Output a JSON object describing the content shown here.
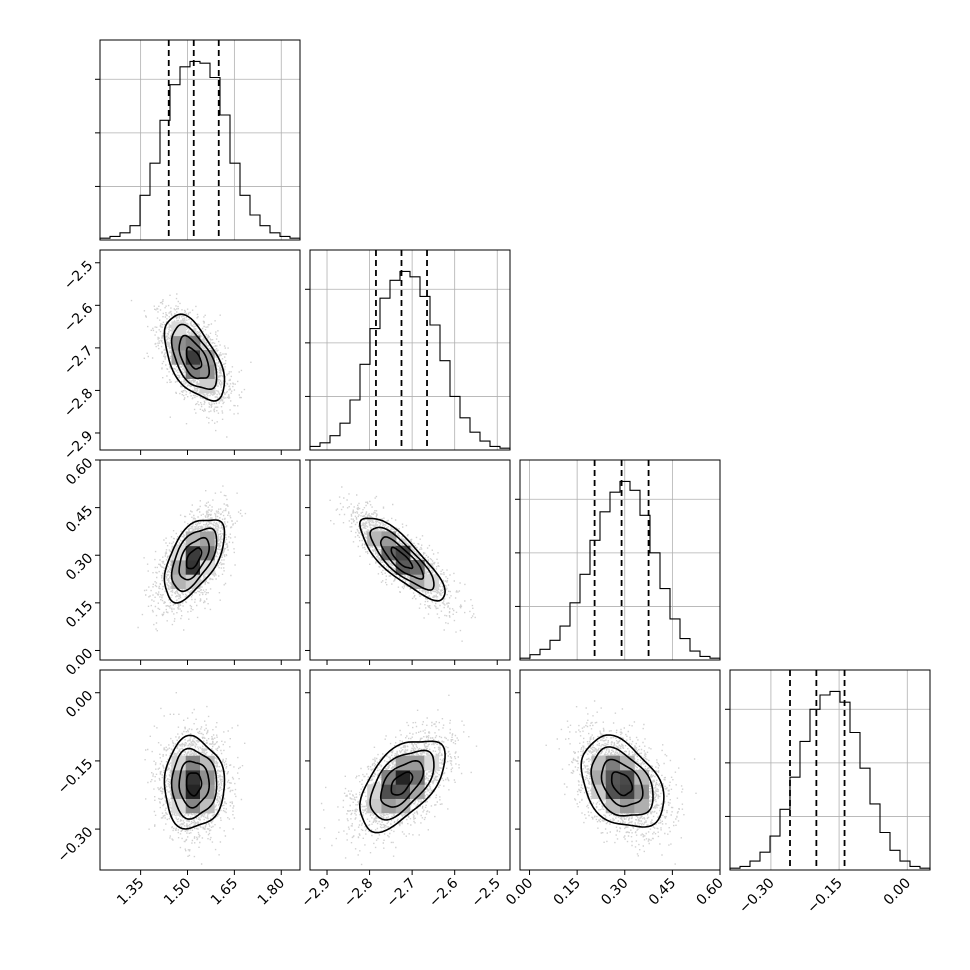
{
  "chart_data": {
    "type": "corner",
    "grid": true,
    "parameters": [
      {
        "range": [
          1.22,
          1.86
        ],
        "ticks": [
          1.35,
          1.5,
          1.65,
          1.8
        ],
        "tick_labels": [
          "1.35",
          "1.50",
          "1.65",
          "1.80"
        ],
        "quantiles": [
          1.44,
          1.52,
          1.6
        ],
        "histogram": [
          0.01,
          0.02,
          0.04,
          0.08,
          0.25,
          0.43,
          0.67,
          0.87,
          0.97,
          1.0,
          0.99,
          0.91,
          0.7,
          0.43,
          0.25,
          0.14,
          0.08,
          0.04,
          0.02,
          0.01
        ],
        "hist_yticks": [
          0.3,
          0.6,
          0.9
        ]
      },
      {
        "range": [
          -2.94,
          -2.47
        ],
        "ticks": [
          -2.9,
          -2.8,
          -2.7,
          -2.6,
          -2.5
        ],
        "tick_labels": [
          "−2.9",
          "−2.8",
          "−2.7",
          "−2.6",
          "−2.5"
        ],
        "quantiles": [
          -2.785,
          -2.725,
          -2.665
        ],
        "histogram": [
          0.02,
          0.04,
          0.08,
          0.15,
          0.28,
          0.48,
          0.68,
          0.85,
          0.95,
          1.0,
          0.97,
          0.86,
          0.7,
          0.5,
          0.3,
          0.18,
          0.1,
          0.05,
          0.02,
          0.01
        ],
        "hist_yticks": [
          0.3,
          0.6,
          0.9
        ]
      },
      {
        "range": [
          -0.03,
          0.6
        ],
        "ticks": [
          0.0,
          0.15,
          0.3,
          0.45,
          0.6
        ],
        "tick_labels": [
          "0.00",
          "0.15",
          "0.30",
          "0.45",
          "0.60"
        ],
        "quantiles": [
          0.205,
          0.29,
          0.375
        ],
        "histogram": [
          0.01,
          0.03,
          0.06,
          0.11,
          0.19,
          0.32,
          0.48,
          0.67,
          0.83,
          0.94,
          1.0,
          0.95,
          0.81,
          0.6,
          0.4,
          0.23,
          0.12,
          0.05,
          0.02,
          0.01
        ],
        "hist_yticks": [
          0.3,
          0.6,
          0.9
        ]
      },
      {
        "range": [
          -0.39,
          0.05
        ],
        "ticks": [
          -0.3,
          -0.15,
          0.0
        ],
        "tick_labels": [
          "−0.30",
          "−0.15",
          "0.00"
        ],
        "quantiles": [
          -0.258,
          -0.2,
          -0.138
        ],
        "histogram": [
          0.01,
          0.02,
          0.05,
          0.1,
          0.19,
          0.34,
          0.52,
          0.72,
          0.9,
          0.98,
          1.0,
          0.94,
          0.77,
          0.57,
          0.37,
          0.21,
          0.11,
          0.05,
          0.02,
          0.01
        ],
        "hist_yticks": [
          0.3,
          0.6,
          0.9
        ]
      }
    ],
    "pairs": [
      {
        "x": 0,
        "y": 1,
        "mean": [
          1.52,
          -2.725
        ],
        "sd": [
          0.048,
          0.05
        ],
        "corr": -0.55
      },
      {
        "x": 0,
        "y": 2,
        "mean": [
          1.52,
          0.29
        ],
        "sd": [
          0.048,
          0.065
        ],
        "corr": 0.55
      },
      {
        "x": 1,
        "y": 2,
        "mean": [
          -2.725,
          0.29
        ],
        "sd": [
          0.05,
          0.065
        ],
        "corr": -0.82
      },
      {
        "x": 0,
        "y": 3,
        "mean": [
          1.52,
          -0.2
        ],
        "sd": [
          0.048,
          0.05
        ],
        "corr": 0.0
      },
      {
        "x": 1,
        "y": 3,
        "mean": [
          -2.725,
          -0.2
        ],
        "sd": [
          0.05,
          0.05
        ],
        "corr": 0.55
      },
      {
        "x": 2,
        "y": 3,
        "mean": [
          0.29,
          -0.2
        ],
        "sd": [
          0.065,
          0.05
        ],
        "corr": -0.35
      }
    ],
    "contour_levels_sigma": [
      0.5,
      1.0,
      1.5,
      2.0
    ],
    "colors": {
      "line": "#000000",
      "points": "#9a9a9a",
      "grid": "#b0b0b0"
    }
  }
}
